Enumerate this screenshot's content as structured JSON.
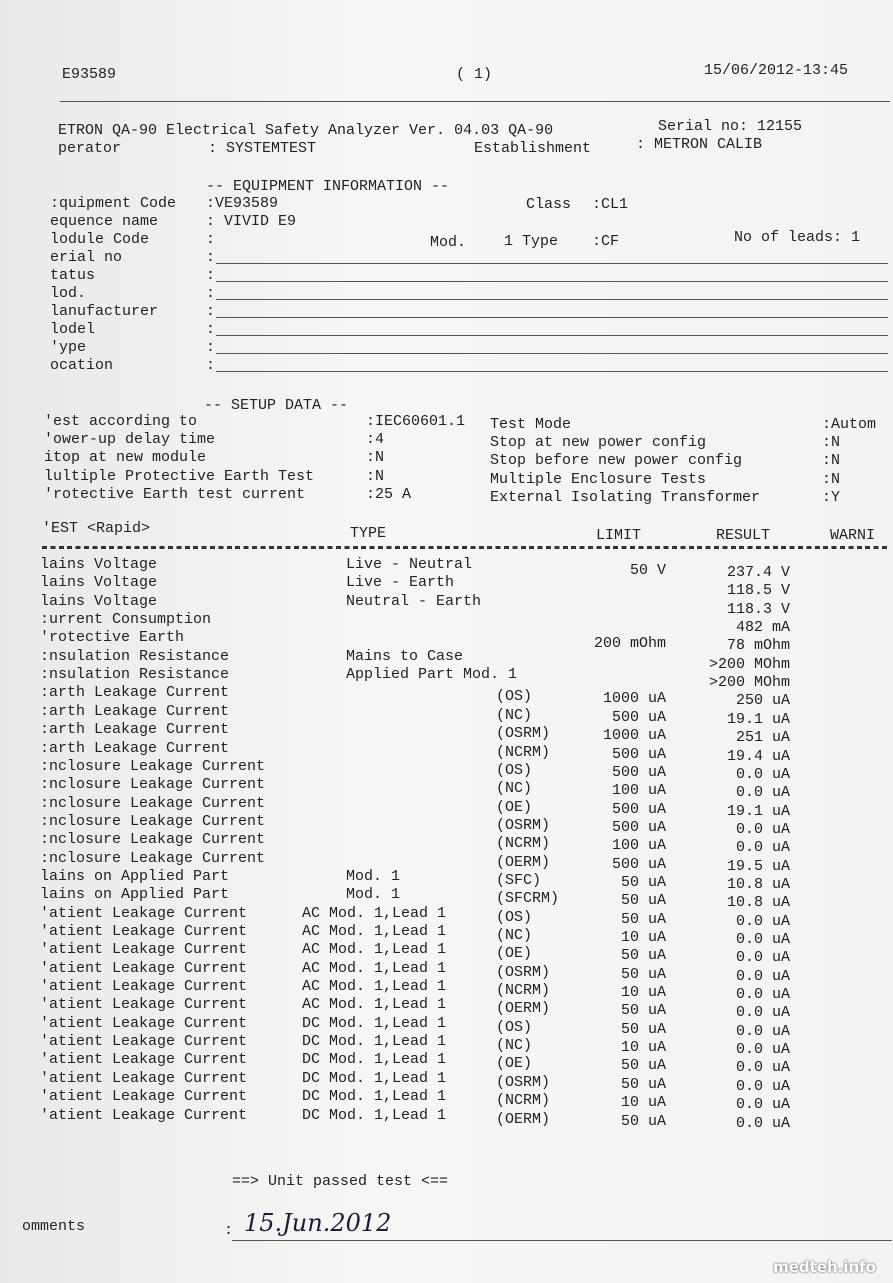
{
  "header": {
    "id": "E93589",
    "page": "( 1)",
    "datetime": "15/06/2012-13:45"
  },
  "title": {
    "product": "ETRON QA-90 Electrical Safety Analyzer Ver. 04.03 QA-90",
    "serial": "Serial no: 12155",
    "operator_label": "perator",
    "operator_value": ": SYSTEMTEST",
    "establishment_label": "Establishment",
    "establishment_value": ": METRON CALIB"
  },
  "equipment": {
    "heading": "-- EQUIPMENT INFORMATION --",
    "fields": [
      {
        "label": ":quipment Code",
        "value": ":VE93589"
      },
      {
        "label": "equence name",
        "value": ": VIVID E9"
      },
      {
        "label": "lodule Code",
        "value": ":"
      },
      {
        "label": "erial no",
        "value": ":"
      },
      {
        "label": "tatus",
        "value": ":"
      },
      {
        "label": "lod.",
        "value": ":"
      },
      {
        "label": "lanufacturer",
        "value": ":"
      },
      {
        "label": "lodel",
        "value": ":"
      },
      {
        "label": "'ype",
        "value": ":"
      },
      {
        "label": "ocation",
        "value": ":"
      }
    ],
    "class_label": "Class",
    "class_value": ":CL1",
    "mod_label": "Mod.",
    "mod_type": "1 Type",
    "type_value": ":CF",
    "leads": "No of leads: 1"
  },
  "setup": {
    "heading": "-- SETUP DATA --",
    "left": [
      {
        "label": "'est according to",
        "value": ":IEC60601.1"
      },
      {
        "label": "'ower-up delay time",
        "value": ":4"
      },
      {
        "label": "itop at new module",
        "value": ":N"
      },
      {
        "label": "lultiple Protective Earth Test",
        "value": ":N"
      },
      {
        "label": "'rotective Earth test current",
        "value": ":25 A"
      }
    ],
    "right": [
      {
        "label": "Test Mode",
        "value": ":Autom"
      },
      {
        "label": "Stop at new power config",
        "value": ":N"
      },
      {
        "label": "Stop before new power config",
        "value": ":N"
      },
      {
        "label": "Multiple Enclosure Tests",
        "value": ":N"
      },
      {
        "label": "External Isolating Transformer",
        "value": ":Y"
      }
    ]
  },
  "table": {
    "columns": {
      "test": "'EST <Rapid>",
      "type": "TYPE",
      "limit": "LIMIT",
      "result": "RESULT",
      "warning": "WARNI"
    },
    "rows": [
      {
        "name": "lains Voltage",
        "type": "Live - Neutral",
        "limit": "50 V",
        "result": "237.4 V"
      },
      {
        "name": "lains Voltage",
        "type": "Live - Earth",
        "result": "118.5 V"
      },
      {
        "name": "lains Voltage",
        "type": "Neutral - Earth",
        "result": "118.3 V"
      },
      {
        "name": ":urrent Consumption",
        "result": "482 mA"
      },
      {
        "name": "'rotective Earth",
        "limit": "200 mOhm",
        "result": "78 mOhm"
      },
      {
        "name": ":nsulation Resistance",
        "type": "Mains to Case",
        "result": ">200 MOhm"
      },
      {
        "name": ":nsulation Resistance",
        "type": "Applied Part Mod. 1",
        "result": ">200 MOhm"
      },
      {
        "name": ":arth Leakage Current",
        "code": "(OS)",
        "limit": "1000 uA",
        "result": "250 uA"
      },
      {
        "name": ":arth Leakage Current",
        "code": "(NC)",
        "limit": "500 uA",
        "result": "19.1 uA"
      },
      {
        "name": ":arth Leakage Current",
        "code": "(OSRM)",
        "limit": "1000 uA",
        "result": "251 uA"
      },
      {
        "name": ":arth Leakage Current",
        "code": "(NCRM)",
        "limit": "500 uA",
        "result": "19.4 uA"
      },
      {
        "name": ":nclosure Leakage Current",
        "code": "(OS)",
        "limit": "500 uA",
        "result": "0.0 uA"
      },
      {
        "name": ":nclosure Leakage Current",
        "code": "(NC)",
        "limit": "100 uA",
        "result": "0.0 uA"
      },
      {
        "name": ":nclosure Leakage Current",
        "code": "(OE)",
        "limit": "500 uA",
        "result": "19.1 uA"
      },
      {
        "name": ":nclosure Leakage Current",
        "code": "(OSRM)",
        "limit": "500 uA",
        "result": "0.0 uA"
      },
      {
        "name": ":nclosure Leakage Current",
        "code": "(NCRM)",
        "limit": "100 uA",
        "result": "0.0 uA"
      },
      {
        "name": ":nclosure Leakage Current",
        "code": "(OERM)",
        "limit": "500 uA",
        "result": "19.5 uA"
      },
      {
        "name": "lains on Applied Part",
        "type": "Mod. 1",
        "code": "(SFC)",
        "limit": "50 uA",
        "result": "10.8 uA"
      },
      {
        "name": "lains on Applied Part",
        "type": "Mod. 1",
        "code": "(SFCRM)",
        "limit": "50 uA",
        "result": "10.8 uA"
      },
      {
        "name": "'atient Leakage Current",
        "type": "AC Mod. 1,Lead 1",
        "code": "(OS)",
        "limit": "50 uA",
        "result": "0.0 uA"
      },
      {
        "name": "'atient Leakage Current",
        "type": "AC Mod. 1,Lead 1",
        "code": "(NC)",
        "limit": "10 uA",
        "result": "0.0 uA"
      },
      {
        "name": "'atient Leakage Current",
        "type": "AC Mod. 1,Lead 1",
        "code": "(OE)",
        "limit": "50 uA",
        "result": "0.0 uA"
      },
      {
        "name": "'atient Leakage Current",
        "type": "AC Mod. 1,Lead 1",
        "code": "(OSRM)",
        "limit": "50 uA",
        "result": "0.0 uA"
      },
      {
        "name": "'atient Leakage Current",
        "type": "AC Mod. 1,Lead 1",
        "code": "(NCRM)",
        "limit": "10 uA",
        "result": "0.0 uA"
      },
      {
        "name": "'atient Leakage Current",
        "type": "AC Mod. 1,Lead 1",
        "code": "(OERM)",
        "limit": "50 uA",
        "result": "0.0 uA"
      },
      {
        "name": "'atient Leakage Current",
        "type": "DC Mod. 1,Lead 1",
        "code": "(OS)",
        "limit": "50 uA",
        "result": "0.0 uA"
      },
      {
        "name": "'atient Leakage Current",
        "type": "DC Mod. 1,Lead 1",
        "code": "(NC)",
        "limit": "10 uA",
        "result": "0.0 uA"
      },
      {
        "name": "'atient Leakage Current",
        "type": "DC Mod. 1,Lead 1",
        "code": "(OE)",
        "limit": "50 uA",
        "result": "0.0 uA"
      },
      {
        "name": "'atient Leakage Current",
        "type": "DC Mod. 1,Lead 1",
        "code": "(OSRM)",
        "limit": "50 uA",
        "result": "0.0 uA"
      },
      {
        "name": "'atient Leakage Current",
        "type": "DC Mod. 1,Lead 1",
        "code": "(NCRM)",
        "limit": "10 uA",
        "result": "0.0 uA"
      },
      {
        "name": "'atient Leakage Current",
        "type": "DC Mod. 1,Lead 1",
        "code": "(OERM)",
        "limit": "50 uA",
        "result": "0.0 uA"
      }
    ]
  },
  "footer": {
    "verdict": "==> Unit passed test <==",
    "comments_label": "omments",
    "comments_colon": ":",
    "handwritten": "15.Jun.2012"
  },
  "watermark": "medteh.info"
}
